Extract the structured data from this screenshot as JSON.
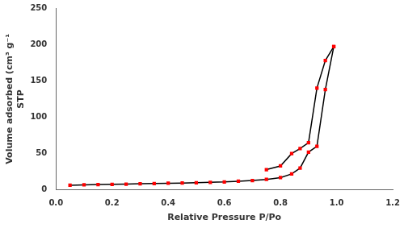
{
  "chart_data": {
    "type": "line",
    "xlabel": "Relative Pressure P/Po",
    "ylabel": "Volume adsorbed (cm³ g⁻¹\nSTP",
    "color": "#ff0000",
    "series": [
      {
        "x": [
          0.05,
          0.1,
          0.15,
          0.2,
          0.25,
          0.3,
          0.35,
          0.4,
          0.45,
          0.5,
          0.55,
          0.6,
          0.65,
          0.7,
          0.75,
          0.8,
          0.84,
          0.87,
          0.9,
          0.93,
          0.96,
          0.99
        ],
        "values": [
          6.5,
          7.0,
          7.5,
          7.8,
          8.0,
          8.5,
          8.8,
          9.2,
          9.5,
          10.0,
          10.5,
          11.0,
          12.0,
          13.0,
          14.5,
          17.0,
          22.0,
          30.0,
          52.0,
          60.0,
          138.0,
          197.0
        ],
        "color": "#000000",
        "marker": "square"
      },
      {
        "x": [
          0.99,
          0.96,
          0.93,
          0.9,
          0.87,
          0.84,
          0.8,
          0.75
        ],
        "values": [
          197.0,
          178.0,
          140.0,
          65.0,
          57.0,
          50.0,
          33.0,
          28.0
        ],
        "color": "#000000",
        "marker": "square"
      }
    ],
    "xlim": [
      0.0,
      1.2
    ],
    "ylim": [
      0,
      250
    ],
    "xticks": [
      {
        "value": 0.0,
        "label": "0.0"
      },
      0.2,
      0.4,
      0.6,
      0.8,
      {
        "value": 1.0,
        "label": "1.0"
      },
      1.2
    ],
    "yticks": [
      0,
      50,
      100,
      150,
      200,
      250
    ],
    "grid": false,
    "legend": false
  }
}
